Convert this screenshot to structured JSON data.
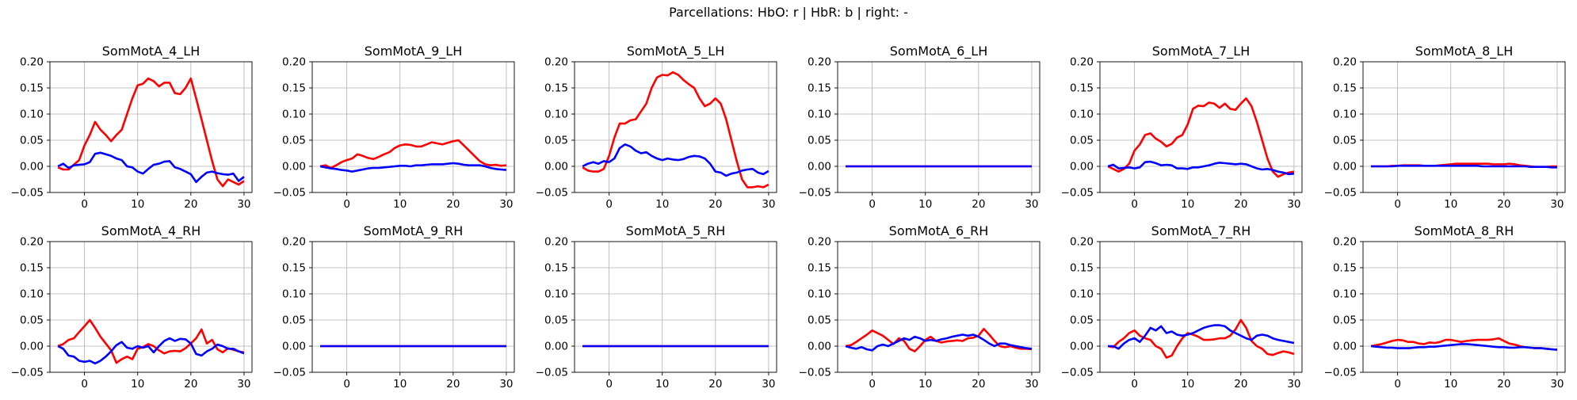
{
  "suptitle": "Parcellations: HbO: r | HbR: b | right: -",
  "chart_data": {
    "type": "line",
    "grid": true,
    "rows": 2,
    "cols": 6,
    "xlim": [
      -6.5,
      31.5
    ],
    "ylim": [
      -0.05,
      0.2
    ],
    "x_ticks": [
      0,
      10,
      20,
      30
    ],
    "x_tick_labels": [
      "0",
      "10",
      "20",
      "30"
    ],
    "y_ticks": [
      -0.05,
      0.0,
      0.05,
      0.1,
      0.15,
      0.2
    ],
    "y_tick_labels": [
      "−0.05",
      "0.00",
      "0.05",
      "0.10",
      "0.15",
      "0.20"
    ],
    "series_colors": {
      "HbO": "#ff0000",
      "HbR": "#0000ff"
    },
    "x": [
      -5,
      -4,
      -3,
      -2,
      -1,
      0,
      1,
      2,
      3,
      4,
      5,
      6,
      7,
      8,
      9,
      10,
      11,
      12,
      13,
      14,
      15,
      16,
      17,
      18,
      19,
      20,
      21,
      22,
      23,
      24,
      25,
      26,
      27,
      28,
      29,
      30
    ],
    "panels": [
      {
        "title": "SomMotA_4_LH",
        "HbO": [
          -0.002,
          -0.006,
          -0.006,
          0.003,
          0.012,
          0.04,
          0.06,
          0.085,
          0.07,
          0.06,
          0.048,
          0.06,
          0.07,
          0.1,
          0.13,
          0.155,
          0.158,
          0.168,
          0.163,
          0.153,
          0.16,
          0.16,
          0.14,
          0.138,
          0.15,
          0.168,
          0.13,
          0.09,
          0.05,
          0.01,
          -0.025,
          -0.038,
          -0.025,
          -0.03,
          -0.035,
          -0.028
        ],
        "HbR": [
          0.0,
          0.005,
          -0.003,
          0.002,
          0.003,
          0.004,
          0.008,
          0.024,
          0.026,
          0.023,
          0.02,
          0.015,
          0.012,
          0.0,
          -0.002,
          -0.01,
          -0.014,
          -0.005,
          0.003,
          0.005,
          0.009,
          0.01,
          -0.002,
          -0.005,
          -0.01,
          -0.015,
          -0.03,
          -0.02,
          -0.012,
          -0.01,
          -0.013,
          -0.015,
          -0.016,
          -0.014,
          -0.028,
          -0.02
        ]
      },
      {
        "title": "SomMotA_9_LH",
        "HbO": [
          0.0,
          0.002,
          -0.003,
          0.002,
          0.008,
          0.012,
          0.015,
          0.023,
          0.02,
          0.016,
          0.014,
          0.018,
          0.023,
          0.027,
          0.035,
          0.04,
          0.042,
          0.041,
          0.038,
          0.038,
          0.042,
          0.046,
          0.044,
          0.042,
          0.045,
          0.048,
          0.05,
          0.04,
          0.03,
          0.02,
          0.01,
          0.004,
          0.002,
          0.003,
          0.001,
          0.002
        ],
        "HbR": [
          0.0,
          -0.002,
          -0.004,
          -0.005,
          -0.007,
          -0.008,
          -0.01,
          -0.008,
          -0.006,
          -0.004,
          -0.003,
          -0.003,
          -0.002,
          -0.001,
          0.0,
          0.001,
          0.001,
          0.0,
          0.002,
          0.002,
          0.003,
          0.004,
          0.004,
          0.004,
          0.005,
          0.006,
          0.005,
          0.003,
          0.002,
          0.002,
          0.002,
          0.0,
          -0.003,
          -0.005,
          -0.006,
          -0.007
        ]
      },
      {
        "title": "SomMotA_5_LH",
        "HbO": [
          -0.002,
          -0.008,
          -0.01,
          -0.01,
          -0.005,
          0.02,
          0.055,
          0.082,
          0.082,
          0.088,
          0.09,
          0.105,
          0.12,
          0.15,
          0.17,
          0.175,
          0.174,
          0.18,
          0.175,
          0.165,
          0.157,
          0.15,
          0.13,
          0.115,
          0.12,
          0.13,
          0.12,
          0.09,
          0.05,
          0.01,
          -0.025,
          -0.04,
          -0.04,
          -0.038,
          -0.04,
          -0.035
        ],
        "HbR": [
          0.0,
          0.005,
          0.008,
          0.005,
          0.01,
          0.008,
          0.015,
          0.035,
          0.042,
          0.038,
          0.03,
          0.025,
          0.027,
          0.02,
          0.015,
          0.012,
          0.015,
          0.013,
          0.012,
          0.014,
          0.018,
          0.02,
          0.019,
          0.015,
          0.005,
          -0.01,
          -0.012,
          -0.018,
          -0.014,
          -0.012,
          -0.008,
          -0.006,
          -0.005,
          -0.012,
          -0.015,
          -0.009
        ]
      },
      {
        "title": "SomMotA_6_LH",
        "HbO": [
          0,
          0,
          0,
          0,
          0,
          0,
          0,
          0,
          0,
          0,
          0,
          0,
          0,
          0,
          0,
          0,
          0,
          0,
          0,
          0,
          0,
          0,
          0,
          0,
          0,
          0,
          0,
          0,
          0,
          0,
          0,
          0,
          0,
          0,
          0,
          0
        ],
        "HbR": [
          0,
          0,
          0,
          0,
          0,
          0,
          0,
          0,
          0,
          0,
          0,
          0,
          0,
          0,
          0,
          0,
          0,
          0,
          0,
          0,
          0,
          0,
          0,
          0,
          0,
          0,
          0,
          0,
          0,
          0,
          0,
          0,
          0,
          0,
          0,
          0
        ]
      },
      {
        "title": "SomMotA_7_LH",
        "HbO": [
          0.0,
          -0.005,
          -0.01,
          -0.005,
          0.005,
          0.03,
          0.042,
          0.06,
          0.063,
          0.053,
          0.047,
          0.038,
          0.043,
          0.055,
          0.06,
          0.08,
          0.11,
          0.116,
          0.115,
          0.122,
          0.12,
          0.112,
          0.12,
          0.11,
          0.108,
          0.12,
          0.13,
          0.115,
          0.085,
          0.05,
          0.015,
          -0.01,
          -0.02,
          -0.015,
          -0.012,
          -0.01
        ],
        "HbR": [
          0.0,
          0.003,
          -0.004,
          -0.003,
          -0.002,
          -0.004,
          -0.002,
          0.008,
          0.009,
          0.006,
          0.002,
          0.003,
          0.002,
          -0.004,
          -0.004,
          -0.005,
          -0.002,
          -0.002,
          0.0,
          0.002,
          0.005,
          0.007,
          0.006,
          0.005,
          0.004,
          0.005,
          0.004,
          0.0,
          -0.004,
          -0.006,
          -0.005,
          -0.007,
          -0.01,
          -0.012,
          -0.015,
          -0.014
        ]
      },
      {
        "title": "SomMotA_8_LH",
        "HbO": [
          0.0,
          0.0,
          0.0,
          0.0,
          0.001,
          0.001,
          0.002,
          0.002,
          0.002,
          0.002,
          0.001,
          0.001,
          0.001,
          0.002,
          0.003,
          0.004,
          0.005,
          0.005,
          0.005,
          0.005,
          0.005,
          0.005,
          0.005,
          0.004,
          0.004,
          0.004,
          0.005,
          0.004,
          0.002,
          0.001,
          0.0,
          -0.001,
          -0.001,
          -0.001,
          0.0,
          0.0
        ],
        "HbR": [
          0.0,
          0.0,
          0.0,
          0.0,
          0.0,
          0.001,
          0.001,
          0.001,
          0.001,
          0.001,
          0.001,
          0.001,
          0.001,
          0.001,
          0.001,
          0.001,
          0.001,
          0.001,
          0.001,
          0.001,
          0.001,
          0.0,
          0.0,
          0.0,
          0.0,
          0.0,
          0.0,
          0.0,
          0.0,
          0.0,
          -0.001,
          -0.001,
          -0.001,
          -0.001,
          -0.002,
          -0.002
        ]
      },
      {
        "title": "SomMotA_4_RH",
        "HbO": [
          0.0,
          0.004,
          0.012,
          0.015,
          0.027,
          0.038,
          0.05,
          0.035,
          0.018,
          0.005,
          -0.008,
          -0.032,
          -0.025,
          -0.02,
          -0.025,
          -0.005,
          -0.002,
          0.004,
          0.0,
          -0.008,
          -0.014,
          -0.01,
          -0.009,
          -0.01,
          -0.004,
          0.005,
          0.015,
          0.032,
          0.005,
          0.012,
          -0.006,
          -0.012,
          -0.004,
          -0.007,
          -0.01,
          -0.012
        ],
        "HbR": [
          0.0,
          -0.005,
          -0.018,
          -0.02,
          -0.028,
          -0.03,
          -0.028,
          -0.033,
          -0.028,
          -0.02,
          -0.01,
          0.002,
          0.008,
          -0.003,
          -0.005,
          0.0,
          -0.003,
          0.0,
          -0.012,
          0.0,
          0.01,
          0.015,
          0.01,
          0.014,
          0.013,
          0.005,
          -0.015,
          -0.018,
          -0.01,
          -0.005,
          0.003,
          0.0,
          -0.005,
          -0.005,
          -0.01,
          -0.014
        ]
      },
      {
        "title": "SomMotA_9_RH",
        "HbO": [
          0,
          0,
          0,
          0,
          0,
          0,
          0,
          0,
          0,
          0,
          0,
          0,
          0,
          0,
          0,
          0,
          0,
          0,
          0,
          0,
          0,
          0,
          0,
          0,
          0,
          0,
          0,
          0,
          0,
          0,
          0,
          0,
          0,
          0,
          0,
          0
        ],
        "HbR": [
          0,
          0,
          0,
          0,
          0,
          0,
          0,
          0,
          0,
          0,
          0,
          0,
          0,
          0,
          0,
          0,
          0,
          0,
          0,
          0,
          0,
          0,
          0,
          0,
          0,
          0,
          0,
          0,
          0,
          0,
          0,
          0,
          0,
          0,
          0,
          0
        ]
      },
      {
        "title": "SomMotA_5_RH",
        "HbO": [
          0,
          0,
          0,
          0,
          0,
          0,
          0,
          0,
          0,
          0,
          0,
          0,
          0,
          0,
          0,
          0,
          0,
          0,
          0,
          0,
          0,
          0,
          0,
          0,
          0,
          0,
          0,
          0,
          0,
          0,
          0,
          0,
          0,
          0,
          0,
          0
        ],
        "HbR": [
          0,
          0,
          0,
          0,
          0,
          0,
          0,
          0,
          0,
          0,
          0,
          0,
          0,
          0,
          0,
          0,
          0,
          0,
          0,
          0,
          0,
          0,
          0,
          0,
          0,
          0,
          0,
          0,
          0,
          0,
          0,
          0,
          0,
          0,
          0,
          0
        ]
      },
      {
        "title": "SomMotA_6_RH",
        "HbO": [
          0.0,
          0.002,
          0.008,
          0.015,
          0.022,
          0.03,
          0.025,
          0.02,
          0.012,
          0.004,
          0.015,
          0.01,
          -0.005,
          -0.01,
          0.0,
          0.012,
          0.018,
          0.01,
          0.007,
          0.009,
          0.01,
          0.011,
          0.01,
          0.015,
          0.016,
          0.02,
          0.033,
          0.022,
          0.01,
          0.0,
          -0.002,
          0.0,
          -0.003,
          -0.005,
          -0.005,
          -0.006
        ],
        "HbR": [
          0.0,
          -0.003,
          -0.005,
          -0.002,
          -0.006,
          -0.008,
          0.0,
          0.003,
          0.0,
          0.005,
          0.01,
          0.015,
          0.012,
          0.018,
          0.015,
          0.01,
          0.012,
          0.01,
          0.013,
          0.015,
          0.018,
          0.02,
          0.022,
          0.02,
          0.022,
          0.018,
          0.012,
          0.005,
          0.0,
          0.005,
          0.005,
          0.002,
          0.0,
          -0.002,
          -0.004,
          -0.005
        ]
      },
      {
        "title": "SomMotA_7_RH",
        "HbO": [
          0.0,
          -0.002,
          0.008,
          0.015,
          0.025,
          0.03,
          0.02,
          0.015,
          0.012,
          0.0,
          -0.005,
          -0.022,
          -0.018,
          0.0,
          0.015,
          0.025,
          0.022,
          0.018,
          0.012,
          0.012,
          0.013,
          0.015,
          0.015,
          0.02,
          0.032,
          0.05,
          0.035,
          0.01,
          0.0,
          -0.005,
          -0.015,
          -0.017,
          -0.013,
          -0.01,
          -0.012,
          -0.015
        ],
        "HbR": [
          0.0,
          0.0,
          -0.005,
          0.005,
          0.012,
          0.015,
          0.008,
          0.02,
          0.035,
          0.03,
          0.038,
          0.025,
          0.028,
          0.022,
          0.02,
          0.022,
          0.025,
          0.03,
          0.035,
          0.038,
          0.04,
          0.04,
          0.038,
          0.03,
          0.025,
          0.02,
          0.015,
          0.012,
          0.02,
          0.022,
          0.02,
          0.015,
          0.012,
          0.01,
          0.008,
          0.006
        ]
      },
      {
        "title": "SomMotA_8_RH",
        "HbO": [
          0.0,
          0.002,
          0.004,
          0.007,
          0.01,
          0.012,
          0.011,
          0.008,
          0.008,
          0.005,
          0.004,
          0.007,
          0.006,
          0.008,
          0.012,
          0.012,
          0.01,
          0.008,
          0.01,
          0.011,
          0.012,
          0.012,
          0.012,
          0.013,
          0.015,
          0.01,
          0.005,
          0.003,
          0.0,
          -0.002,
          -0.003,
          -0.004,
          -0.004,
          -0.005,
          -0.006,
          -0.007
        ],
        "HbR": [
          0.0,
          -0.001,
          -0.002,
          -0.003,
          -0.003,
          -0.004,
          -0.004,
          -0.004,
          -0.003,
          -0.002,
          -0.002,
          -0.001,
          -0.001,
          0.0,
          0.001,
          0.002,
          0.003,
          0.004,
          0.004,
          0.003,
          0.002,
          0.001,
          0.0,
          -0.001,
          -0.002,
          -0.002,
          -0.003,
          -0.003,
          -0.002,
          -0.002,
          -0.003,
          -0.004,
          -0.004,
          -0.005,
          -0.006,
          -0.007
        ]
      }
    ]
  }
}
